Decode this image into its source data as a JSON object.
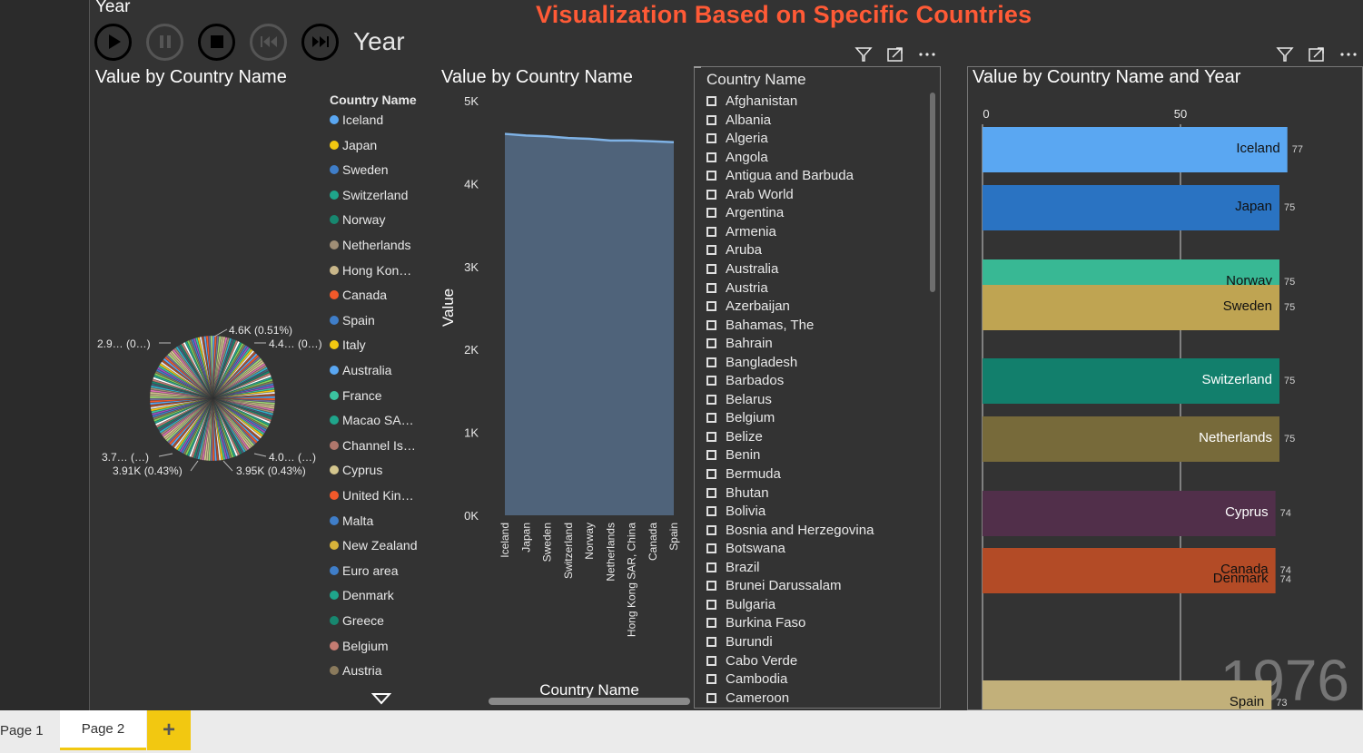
{
  "title": "Visualization Based on Specific Countries",
  "play_axis": {
    "label": "Year",
    "current_value": "Year",
    "buttons": [
      "play",
      "pause",
      "stop",
      "previous",
      "next"
    ]
  },
  "pie_visual": {
    "title": "Value by Country Name",
    "legend_title": "Country Name",
    "legend_items": [
      {
        "label": "Iceland",
        "color": "#5aa7f2"
      },
      {
        "label": "Japan",
        "color": "#f2c811"
      },
      {
        "label": "Sweden",
        "color": "#3f7ec9"
      },
      {
        "label": "Switzerland",
        "color": "#1fa58b"
      },
      {
        "label": "Norway",
        "color": "#17876f"
      },
      {
        "label": "Netherlands",
        "color": "#a08e76"
      },
      {
        "label": "Hong Kon…",
        "color": "#c9b78a"
      },
      {
        "label": "Canada",
        "color": "#f2592a"
      },
      {
        "label": "Spain",
        "color": "#3f7ec9"
      },
      {
        "label": "Italy",
        "color": "#f2c811"
      },
      {
        "label": "Australia",
        "color": "#5aa7f2"
      },
      {
        "label": "France",
        "color": "#3bc3a0"
      },
      {
        "label": "Macao SA…",
        "color": "#1fa58b"
      },
      {
        "label": "Channel Is…",
        "color": "#b0776c"
      },
      {
        "label": "Cyprus",
        "color": "#d4c68e"
      },
      {
        "label": "United Kin…",
        "color": "#f2592a"
      },
      {
        "label": "Malta",
        "color": "#3f7ec9"
      },
      {
        "label": "New Zealand",
        "color": "#d8b33a"
      },
      {
        "label": "Euro area",
        "color": "#3f7ec9"
      },
      {
        "label": "Denmark",
        "color": "#1fa58b"
      },
      {
        "label": "Greece",
        "color": "#17876f"
      },
      {
        "label": "Belgium",
        "color": "#c47c72"
      },
      {
        "label": "Austria",
        "color": "#8a7a5c"
      }
    ],
    "data_labels": [
      {
        "text": "4.6K (0.51%)"
      },
      {
        "text": "4.4… (0…)"
      },
      {
        "text": "2.9… (0…)"
      },
      {
        "text": "3.7… (…)"
      },
      {
        "text": "3.91K (0.43%)"
      },
      {
        "text": "4.0… (…)"
      },
      {
        "text": "3.95K (0.43%)"
      }
    ]
  },
  "area_visual": {
    "title": "Value by Country Name",
    "ylabel": "Value",
    "xlabel": "Country Name",
    "y_ticks": [
      "5K",
      "4K",
      "3K",
      "2K",
      "1K",
      "0K"
    ]
  },
  "chart_data": {
    "type": "area",
    "title": "Value by Country Name",
    "xlabel": "Country Name",
    "ylabel": "Value",
    "categories": [
      "Iceland",
      "Japan",
      "Sweden",
      "Switzerland",
      "Norway",
      "Netherlands",
      "Hong Kong SAR, China",
      "Canada",
      "Spain"
    ],
    "values": [
      4600,
      4580,
      4570,
      4550,
      4540,
      4520,
      4520,
      4510,
      4500
    ],
    "ylim": [
      0,
      5000
    ],
    "grid": false
  },
  "slicer": {
    "title": "Country Name",
    "items": [
      "Afghanistan",
      "Albania",
      "Algeria",
      "Angola",
      "Antigua and Barbuda",
      "Arab World",
      "Argentina",
      "Armenia",
      "Aruba",
      "Australia",
      "Austria",
      "Azerbaijan",
      "Bahamas, The",
      "Bahrain",
      "Bangladesh",
      "Barbados",
      "Belarus",
      "Belgium",
      "Belize",
      "Benin",
      "Bermuda",
      "Bhutan",
      "Bolivia",
      "Bosnia and Herzegovina",
      "Botswana",
      "Brazil",
      "Brunei Darussalam",
      "Bulgaria",
      "Burkina Faso",
      "Burundi",
      "Cabo Verde",
      "Cambodia",
      "Cameroon"
    ]
  },
  "race_visual": {
    "title": "Value by Country Name and Year",
    "axis_ticks": [
      "0",
      "50"
    ],
    "year_watermark": "1976",
    "bars": [
      {
        "label": "Iceland",
        "value": 77,
        "value_label": "77",
        "color": "#5aa7f2"
      },
      {
        "label": "Japan",
        "value": 75,
        "value_label": "75",
        "color": "#2a73c2"
      },
      {
        "label": "Norway",
        "value": 75,
        "value_label": "75",
        "color": "#38b894"
      },
      {
        "label": "Sweden",
        "value": 75,
        "value_label": "75",
        "color": "#bfa452"
      },
      {
        "label": "Switzerland",
        "value": 75,
        "value_label": "75",
        "color": "#127f6c"
      },
      {
        "label": "Netherlands",
        "value": 75,
        "value_label": "75",
        "color": "#776a3a"
      },
      {
        "label": "Cyprus",
        "value": 74,
        "value_label": "74",
        "color": "#512f4a"
      },
      {
        "label": "Canada",
        "value": 74,
        "value_label": "74",
        "color": "#b34b26"
      },
      {
        "label": "Denmark",
        "value": 74,
        "value_label": "74",
        "color": "#b34b26"
      },
      {
        "label": "Spain",
        "value": 73,
        "value_label": "73",
        "color": "#c2b07a"
      }
    ]
  },
  "tabs": {
    "items": [
      "Page 1",
      "Page 2"
    ],
    "active": "Page 2",
    "add_label": "+"
  }
}
